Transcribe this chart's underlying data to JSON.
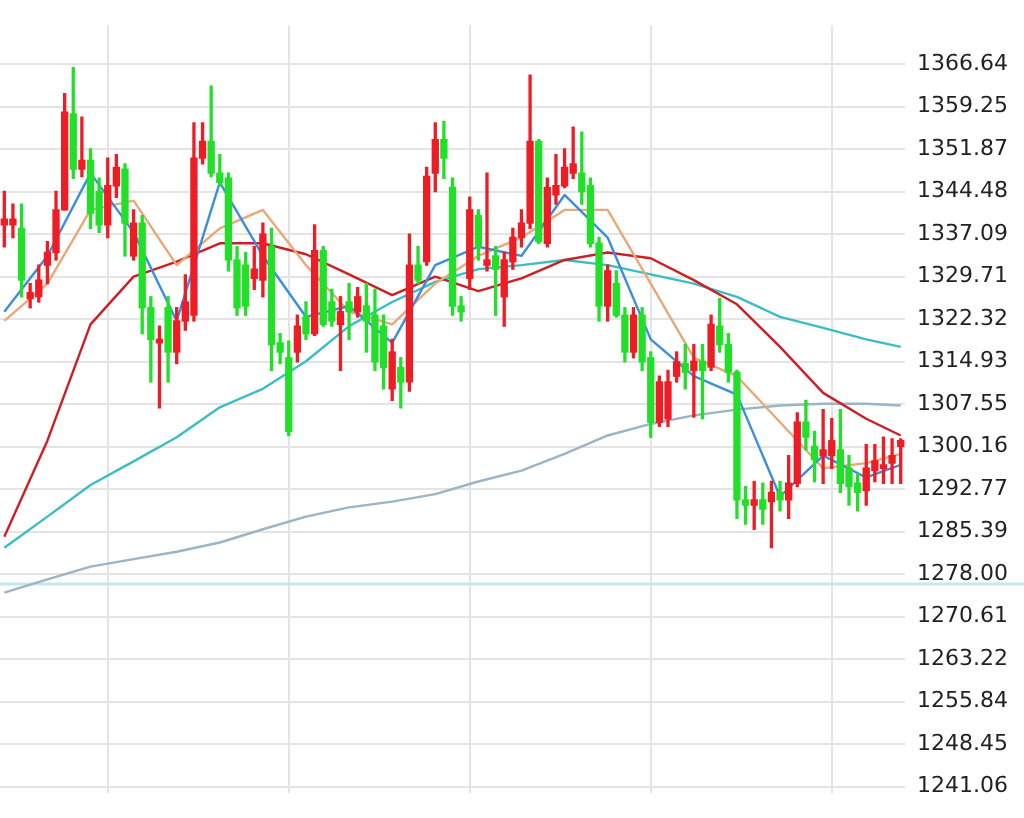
{
  "chart_data": {
    "type": "candlestick",
    "categories": [
      null,
      null,
      null,
      null,
      null,
      null,
      null,
      null,
      null,
      null,
      null,
      null,
      null,
      null,
      null,
      null,
      null,
      null,
      null,
      null,
      null,
      null,
      null,
      null,
      null,
      null,
      null,
      null,
      null,
      null,
      null,
      null,
      null,
      null,
      null,
      null,
      null,
      null,
      null,
      null,
      null,
      null,
      null,
      null,
      null,
      null,
      null,
      null,
      null,
      null,
      null,
      null,
      null,
      null,
      null,
      null,
      null,
      null,
      null,
      null,
      null,
      null,
      null,
      null,
      null,
      null,
      null,
      null,
      null,
      null,
      null,
      null,
      null,
      null,
      null,
      null,
      null,
      null,
      null,
      null,
      null,
      null,
      null,
      null,
      null,
      null,
      null,
      null,
      null,
      null,
      null,
      null,
      null,
      null,
      null,
      null,
      null,
      null,
      null,
      null,
      null,
      null,
      null,
      null,
      null
    ],
    "ohlc": [
      [
        1338.7,
        1344.5,
        1334.9,
        1339.7
      ],
      [
        1338.7,
        1342.3,
        1336.5,
        1339.7
      ],
      [
        1338.1,
        1342.3,
        1326.2,
        1329.1
      ],
      [
        1325.9,
        1328.5,
        1324.3,
        1326.9
      ],
      [
        1326.2,
        1331.7,
        1325.3,
        1329.1
      ],
      [
        1331.7,
        1335.8,
        1328.5,
        1333.9
      ],
      [
        1333.9,
        1344.5,
        1332.6,
        1341.3
      ],
      [
        1341.3,
        1361.5,
        1341.3,
        1358.3
      ],
      [
        1358.0,
        1366.0,
        1346.8,
        1348.4
      ],
      [
        1348.4,
        1357.4,
        1347.1,
        1349.9
      ],
      [
        1349.9,
        1351.9,
        1338.1,
        1340.7
      ],
      [
        1344.5,
        1346.8,
        1337.4,
        1338.7
      ],
      [
        1338.7,
        1350.3,
        1336.5,
        1345.5
      ],
      [
        1345.5,
        1350.9,
        1343.5,
        1348.7
      ],
      [
        1348.4,
        1349.3,
        1333.3,
        1339.0
      ],
      [
        1333.3,
        1341.3,
        1332.6,
        1339.0
      ],
      [
        1339.0,
        1340.3,
        1319.8,
        1324.3
      ],
      [
        1324.3,
        1326.2,
        1311.4,
        1318.8
      ],
      [
        1318.2,
        1321.1,
        1306.9,
        1318.8
      ],
      [
        1324.3,
        1326.2,
        1311.4,
        1316.6
      ],
      [
        1316.6,
        1324.3,
        1314.6,
        1322.0
      ],
      [
        1322.0,
        1330.0,
        1320.4,
        1325.3
      ],
      [
        1323.0,
        1356.4,
        1322.0,
        1350.3
      ],
      [
        1350.3,
        1356.4,
        1349.3,
        1353.2
      ],
      [
        1353.2,
        1362.8,
        1347.1,
        1347.7
      ],
      [
        1347.7,
        1350.9,
        1345.5,
        1346.1
      ],
      [
        1346.8,
        1347.7,
        1330.7,
        1332.6
      ],
      [
        1332.6,
        1334.9,
        1323.0,
        1324.3
      ],
      [
        1331.7,
        1333.9,
        1323.0,
        1324.6
      ],
      [
        1329.4,
        1334.9,
        1327.5,
        1331.0
      ],
      [
        1329.1,
        1339.0,
        1326.2,
        1337.1
      ],
      [
        1334.9,
        1338.1,
        1313.4,
        1317.9
      ],
      [
        1318.2,
        1319.8,
        1314.6,
        1316.6
      ],
      [
        1315.6,
        1318.5,
        1302.1,
        1302.8
      ],
      [
        1316.6,
        1323.0,
        1314.9,
        1321.1
      ],
      [
        1322.7,
        1325.3,
        1318.8,
        1319.8
      ],
      [
        1319.8,
        1338.7,
        1319.5,
        1334.2
      ],
      [
        1334.2,
        1334.9,
        1321.1,
        1321.4
      ],
      [
        1325.3,
        1327.5,
        1321.1,
        1322.0
      ],
      [
        1321.4,
        1326.2,
        1313.4,
        1323.6
      ],
      [
        1325.3,
        1328.5,
        1318.8,
        1323.6
      ],
      [
        1323.6,
        1327.8,
        1322.7,
        1326.2
      ],
      [
        1324.6,
        1328.5,
        1316.6,
        1322.0
      ],
      [
        1323.0,
        1327.5,
        1313.4,
        1314.9
      ],
      [
        1321.1,
        1323.0,
        1310.2,
        1313.9
      ],
      [
        1310.2,
        1318.8,
        1308.2,
        1316.6
      ],
      [
        1313.9,
        1315.6,
        1306.9,
        1311.4
      ],
      [
        1311.4,
        1337.1,
        1309.8,
        1331.7
      ],
      [
        1331.7,
        1334.9,
        1328.5,
        1329.1
      ],
      [
        1332.3,
        1348.7,
        1331.7,
        1347.1
      ],
      [
        1347.7,
        1356.4,
        1344.5,
        1353.5
      ],
      [
        1353.5,
        1356.7,
        1346.8,
        1350.3
      ],
      [
        1345.2,
        1346.8,
        1323.0,
        1324.6
      ],
      [
        1324.6,
        1326.2,
        1322.0,
        1323.6
      ],
      [
        1329.4,
        1343.5,
        1327.5,
        1341.3
      ],
      [
        1340.3,
        1341.3,
        1332.6,
        1334.9
      ],
      [
        1331.7,
        1347.7,
        1330.7,
        1332.6
      ],
      [
        1333.3,
        1334.9,
        1323.0,
        1331.0
      ],
      [
        1326.2,
        1333.9,
        1321.1,
        1332.6
      ],
      [
        1332.3,
        1338.1,
        1331.0,
        1336.5
      ],
      [
        1336.5,
        1341.3,
        1334.9,
        1339.0
      ],
      [
        1339.0,
        1364.7,
        1338.1,
        1353.2
      ],
      [
        1353.2,
        1353.5,
        1335.5,
        1335.8
      ],
      [
        1335.5,
        1346.8,
        1334.9,
        1345.2
      ],
      [
        1343.9,
        1350.9,
        1342.3,
        1345.5
      ],
      [
        1345.5,
        1351.9,
        1345.2,
        1348.7
      ],
      [
        1347.7,
        1355.7,
        1346.8,
        1349.3
      ],
      [
        1347.7,
        1354.8,
        1342.3,
        1344.5
      ],
      [
        1345.5,
        1346.8,
        1334.9,
        1335.5
      ],
      [
        1335.5,
        1336.5,
        1322.0,
        1324.6
      ],
      [
        1324.6,
        1331.7,
        1322.0,
        1330.7
      ],
      [
        1328.5,
        1330.7,
        1322.7,
        1323.0
      ],
      [
        1323.0,
        1324.3,
        1314.9,
        1316.6
      ],
      [
        1316.6,
        1324.3,
        1315.6,
        1323.0
      ],
      [
        1323.0,
        1324.3,
        1313.4,
        1314.9
      ],
      [
        1315.6,
        1316.6,
        1301.8,
        1304.4
      ],
      [
        1304.4,
        1312.4,
        1303.7,
        1311.4
      ],
      [
        1305.0,
        1313.4,
        1303.7,
        1311.4
      ],
      [
        1312.4,
        1316.6,
        1311.4,
        1314.9
      ],
      [
        1314.6,
        1317.9,
        1310.2,
        1313.1
      ],
      [
        1313.4,
        1317.9,
        1305.3,
        1315.0
      ],
      [
        1315.0,
        1317.9,
        1305.0,
        1313.4
      ],
      [
        1314.0,
        1323.0,
        1313.4,
        1321.4
      ],
      [
        1321.1,
        1325.9,
        1316.6,
        1317.9
      ],
      [
        1317.9,
        1319.8,
        1311.4,
        1313.1
      ],
      [
        1313.1,
        1313.4,
        1287.7,
        1290.9
      ],
      [
        1290.9,
        1293.2,
        1286.7,
        1290.0
      ],
      [
        1290.0,
        1294.1,
        1285.8,
        1290.9
      ],
      [
        1290.9,
        1293.8,
        1286.7,
        1289.3
      ],
      [
        1290.6,
        1294.1,
        1282.6,
        1292.2
      ],
      [
        1292.2,
        1294.1,
        1289.0,
        1290.9
      ],
      [
        1290.9,
        1298.6,
        1287.7,
        1293.8
      ],
      [
        1293.8,
        1306.0,
        1293.2,
        1304.4
      ],
      [
        1304.4,
        1308.2,
        1299.6,
        1301.8
      ],
      [
        1300.2,
        1302.8,
        1294.1,
        1297.9
      ],
      [
        1298.6,
        1306.6,
        1293.8,
        1299.6
      ],
      [
        1298.6,
        1305.0,
        1296.4,
        1301.2
      ],
      [
        1299.6,
        1306.6,
        1292.2,
        1293.8
      ],
      [
        1296.4,
        1298.6,
        1290.0,
        1293.2
      ],
      [
        1293.8,
        1295.4,
        1289.0,
        1292.2
      ],
      [
        1292.5,
        1300.5,
        1290.0,
        1296.4
      ],
      [
        1296.0,
        1300.5,
        1294.1,
        1297.7
      ],
      [
        1296.4,
        1301.8,
        1293.8,
        1297.0
      ],
      [
        1297.3,
        1301.5,
        1293.8,
        1298.6
      ],
      [
        1300.2,
        1301.5,
        1293.8,
        1301.2
      ]
    ],
    "colors": [
      "#ee1c25",
      "#ee1c25",
      "#22e02a",
      "#ee1c25",
      "#ee1c25",
      "#ee1c25",
      "#ee1c25",
      "#ee1c25",
      "#22e02a",
      "#ee1c25",
      "#22e02a",
      "#22e02a",
      "#ee1c25",
      "#ee1c25",
      "#22e02a",
      "#ee1c25",
      "#22e02a",
      "#22e02a",
      "#ee1c25",
      "#22e02a",
      "#ee1c25",
      "#ee1c25",
      "#ee1c25",
      "#ee1c25",
      "#22e02a",
      "#22e02a",
      "#22e02a",
      "#22e02a",
      "#22e02a",
      "#ee1c25",
      "#ee1c25",
      "#22e02a",
      "#22e02a",
      "#22e02a",
      "#ee1c25",
      "#22e02a",
      "#ee1c25",
      "#22e02a",
      "#22e02a",
      "#ee1c25",
      "#22e02a",
      "#ee1c25",
      "#22e02a",
      "#22e02a",
      "#22e02a",
      "#ee1c25",
      "#22e02a",
      "#ee1c25",
      "#22e02a",
      "#ee1c25",
      "#ee1c25",
      "#22e02a",
      "#22e02a",
      "#22e02a",
      "#ee1c25",
      "#22e02a",
      "#ee1c25",
      "#22e02a",
      "#ee1c25",
      "#ee1c25",
      "#ee1c25",
      "#ee1c25",
      "#22e02a",
      "#ee1c25",
      "#ee1c25",
      "#ee1c25",
      "#ee1c25",
      "#22e02a",
      "#22e02a",
      "#22e02a",
      "#ee1c25",
      "#22e02a",
      "#22e02a",
      "#ee1c25",
      "#22e02a",
      "#22e02a",
      "#ee1c25",
      "#ee1c25",
      "#ee1c25",
      "#22e02a",
      "#ee1c25",
      "#22e02a",
      "#ee1c25",
      "#22e02a",
      "#22e02a",
      "#22e02a",
      "#22e02a",
      "#ee1c25",
      "#22e02a",
      "#ee1c25",
      "#22e02a",
      "#ee1c25",
      "#ee1c25",
      "#22e02a",
      "#22e02a",
      "#ee1c25",
      "#ee1c25",
      "#22e02a",
      "#22e02a",
      "#22e02a",
      "#ee1c25",
      "#ee1c25",
      "#ee1c25",
      "#ee1c25",
      "#ee1c25"
    ],
    "series": [
      {
        "type": "line",
        "color": "#3b8ede",
        "values": [
          1323.6,
          null,
          null,
          null,
          null,
          1333.3,
          null,
          null,
          null,
          null,
          1347.7,
          null,
          null,
          null,
          null,
          1337.4,
          null,
          null,
          null,
          null,
          1322.0,
          null,
          null,
          null,
          null,
          1346.1,
          null,
          null,
          null,
          null,
          1333.3,
          null,
          null,
          null,
          null,
          1322.7,
          null,
          null,
          null,
          null,
          1324.6,
          null,
          null,
          null,
          null,
          1318.2,
          null,
          null,
          null,
          null,
          1331.7,
          null,
          null,
          null,
          null,
          1334.9,
          null,
          null,
          null,
          null,
          1333.3,
          null,
          null,
          null,
          null,
          1343.9,
          null,
          null,
          null,
          null,
          1336.5,
          null,
          null,
          null,
          null,
          1318.8,
          null,
          null,
          null,
          null,
          1312.4,
          null,
          null,
          null,
          null,
          1309.2,
          null,
          null,
          null,
          null,
          1291.5,
          null,
          null,
          null,
          null,
          1298.6,
          null,
          null,
          null,
          null,
          1294.8,
          null,
          null,
          null,
          1297.0
        ]
      },
      {
        "type": "line",
        "color": "#e8a878",
        "values": [
          1322.0,
          null,
          null,
          null,
          null,
          1328.5,
          null,
          null,
          null,
          null,
          1341.3,
          null,
          null,
          null,
          null,
          1342.9,
          null,
          null,
          null,
          null,
          1331.7,
          null,
          null,
          null,
          null,
          1338.1,
          null,
          null,
          null,
          null,
          1341.3,
          null,
          null,
          null,
          null,
          1331.7,
          null,
          null,
          null,
          null,
          1323.6,
          null,
          null,
          null,
          null,
          1321.4,
          null,
          null,
          null,
          null,
          1328.5,
          null,
          null,
          null,
          null,
          1333.3,
          null,
          null,
          null,
          null,
          1336.5,
          null,
          null,
          null,
          null,
          1341.3,
          null,
          null,
          null,
          null,
          1341.3,
          null,
          null,
          null,
          null,
          1328.5,
          null,
          null,
          null,
          null,
          1315.6,
          null,
          null,
          null,
          null,
          1312.4,
          null,
          null,
          null,
          null,
          1304.4,
          null,
          null,
          null,
          null,
          1296.4,
          null,
          null,
          null,
          null,
          1297.3,
          null,
          null,
          null,
          1298.9
        ]
      },
      {
        "type": "line",
        "color": "#cc1f24",
        "values": [
          1284.5,
          null,
          null,
          null,
          null,
          1301.2,
          null,
          null,
          null,
          null,
          1321.4,
          null,
          null,
          null,
          null,
          1329.7,
          null,
          null,
          null,
          null,
          1332.3,
          null,
          null,
          null,
          null,
          1335.5,
          null,
          null,
          null,
          null,
          1335.5,
          null,
          null,
          null,
          null,
          1333.6,
          null,
          null,
          null,
          null,
          1330.1,
          null,
          null,
          null,
          null,
          1326.5,
          null,
          null,
          null,
          null,
          1329.7,
          null,
          null,
          null,
          null,
          1327.2,
          null,
          null,
          null,
          null,
          1329.4,
          null,
          null,
          null,
          null,
          1332.6,
          null,
          null,
          null,
          null,
          1333.9,
          null,
          null,
          null,
          null,
          1332.9,
          null,
          null,
          null,
          null,
          1329.1,
          null,
          null,
          null,
          null,
          1324.9,
          null,
          null,
          null,
          null,
          1317.5,
          null,
          null,
          null,
          null,
          1309.5,
          null,
          null,
          null,
          null,
          1305.0,
          null,
          null,
          null,
          1302.1
        ]
      },
      {
        "type": "line",
        "color": "#3cbcc4",
        "values": [
          1282.6,
          null,
          null,
          null,
          null,
          1288.0,
          null,
          null,
          null,
          null,
          1293.5,
          null,
          null,
          null,
          null,
          1297.6,
          null,
          null,
          null,
          null,
          1301.8,
          null,
          null,
          null,
          null,
          1307.0,
          null,
          null,
          null,
          null,
          1310.2,
          null,
          null,
          null,
          null,
          1315.0,
          null,
          null,
          null,
          null,
          1321.1,
          null,
          null,
          null,
          null,
          1325.3,
          null,
          null,
          null,
          null,
          1328.8,
          null,
          null,
          null,
          null,
          1331.0,
          null,
          null,
          null,
          null,
          1331.7,
          null,
          null,
          null,
          null,
          1332.6,
          null,
          null,
          null,
          null,
          1331.7,
          null,
          null,
          null,
          null,
          1330.1,
          null,
          null,
          null,
          null,
          1328.5,
          null,
          null,
          null,
          null,
          1326.2,
          null,
          null,
          null,
          null,
          1322.7,
          null,
          null,
          null,
          null,
          1320.8,
          null,
          null,
          null,
          null,
          1318.8,
          null,
          null,
          null,
          1317.5
        ]
      },
      {
        "type": "line",
        "color": "#9ab4c8",
        "values": [
          1274.8,
          null,
          null,
          null,
          null,
          1277.1,
          null,
          null,
          null,
          null,
          1279.3,
          null,
          null,
          null,
          null,
          1280.6,
          null,
          null,
          null,
          null,
          1281.9,
          null,
          null,
          null,
          null,
          1283.5,
          null,
          null,
          null,
          null,
          1285.8,
          null,
          null,
          null,
          null,
          1288.0,
          null,
          null,
          null,
          null,
          1289.6,
          null,
          null,
          null,
          null,
          1290.6,
          null,
          null,
          null,
          null,
          1291.9,
          null,
          null,
          null,
          null,
          1294.1,
          null,
          null,
          null,
          null,
          1296.0,
          null,
          null,
          null,
          null,
          1298.9,
          null,
          null,
          null,
          null,
          1302.1,
          null,
          null,
          null,
          null,
          1304.1,
          null,
          null,
          null,
          null,
          1305.6,
          null,
          null,
          null,
          null,
          1306.6,
          null,
          null,
          null,
          null,
          1307.3,
          null,
          null,
          null,
          null,
          1307.6,
          null,
          null,
          null,
          null,
          1307.6,
          null,
          null,
          null,
          1307.3
        ]
      }
    ],
    "ylim": [
      1240,
      1373.4
    ],
    "yticks": [
      1366.64,
      1359.25,
      1351.87,
      1344.48,
      1337.09,
      1329.71,
      1322.32,
      1314.93,
      1307.55,
      1300.16,
      1292.77,
      1285.39,
      {
        "value": 1278,
        "label": "1278.00"
      },
      1270.61,
      1263.22,
      1255.84,
      1248.45,
      1241.06
    ],
    "ref_lines": [
      {
        "axis": "y",
        "value": 1276.3,
        "color": "#c5e8ef"
      }
    ],
    "grid": true,
    "marker": "none",
    "tick_labels": "y"
  }
}
